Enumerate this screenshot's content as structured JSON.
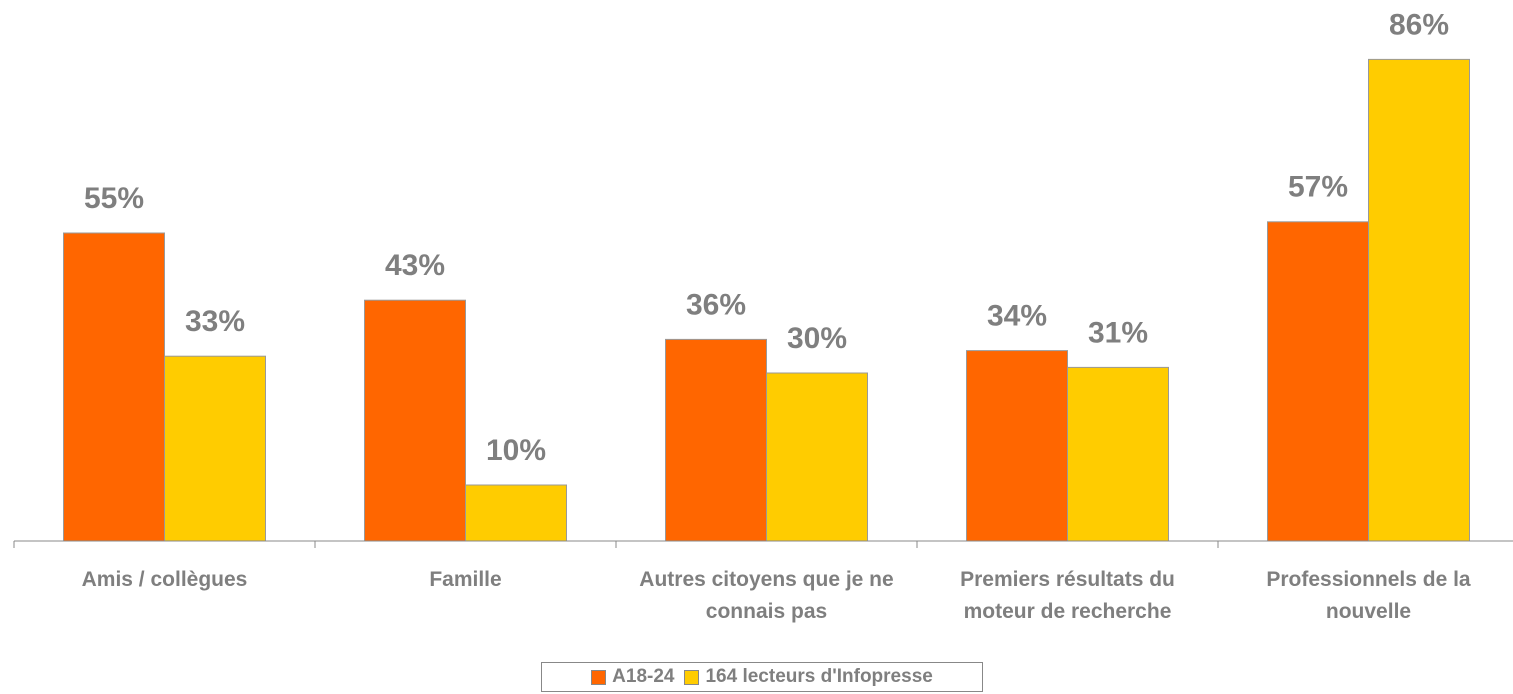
{
  "chart_data": {
    "type": "bar",
    "categories": [
      "Amis / collègues",
      "Famille",
      "Autres citoyens que je ne connais pas",
      "Premiers résultats du moteur de recherche",
      "Professionnels de la nouvelle"
    ],
    "series": [
      {
        "name": "A18-24",
        "color": "#ff6600",
        "values": [
          55,
          43,
          36,
          34,
          57
        ],
        "value_labels": [
          "55%",
          "43%",
          "36%",
          "34%",
          "57%"
        ]
      },
      {
        "name": "164 lecteurs d'Infopresse",
        "color": "#ffcc00",
        "values": [
          33,
          10,
          30,
          31,
          86
        ],
        "value_labels": [
          "33%",
          "10%",
          "30%",
          "31%",
          "86%"
        ]
      }
    ],
    "ylim": [
      0,
      90
    ],
    "legend": "bottom"
  }
}
